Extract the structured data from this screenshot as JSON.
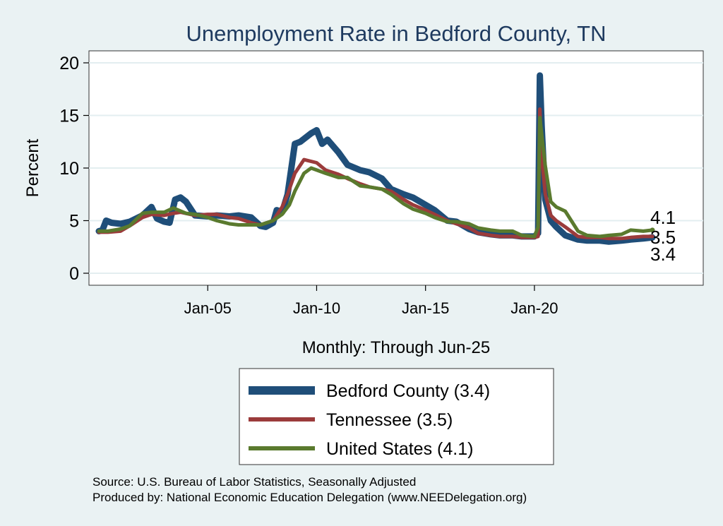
{
  "chart_data": {
    "type": "line",
    "title": "Unemployment Rate in Bedford  County, TN",
    "xlabel": "Monthly: Through Jun-25",
    "ylabel": "Percent",
    "y_ticks": [
      "0",
      "5",
      "10",
      "15",
      "20"
    ],
    "x_ticks": [
      {
        "label": "Jan-05",
        "year": 2005
      },
      {
        "label": "Jan-10",
        "year": 2010
      },
      {
        "label": "Jan-15",
        "year": 2015
      },
      {
        "label": "Jan-20",
        "year": 2020
      }
    ],
    "x_range": [
      "2000-01",
      "2025-06"
    ],
    "ylim": [
      0,
      20
    ],
    "grid": "horizontal",
    "legend": "bottom",
    "series": [
      {
        "name": "Bedford  County (3.4)",
        "color": "#1f4e79",
        "end_label": "3.4",
        "points": [
          [
            "2000-01",
            4.0
          ],
          [
            "2000-03",
            4.1
          ],
          [
            "2000-05",
            5.0
          ],
          [
            "2000-08",
            4.8
          ],
          [
            "2001-01",
            4.7
          ],
          [
            "2001-06",
            4.9
          ],
          [
            "2002-01",
            5.5
          ],
          [
            "2002-06",
            6.3
          ],
          [
            "2002-09",
            5.2
          ],
          [
            "2003-01",
            4.9
          ],
          [
            "2003-04",
            4.8
          ],
          [
            "2003-07",
            7.0
          ],
          [
            "2003-10",
            7.2
          ],
          [
            "2004-01",
            6.8
          ],
          [
            "2004-06",
            5.5
          ],
          [
            "2005-01",
            5.4
          ],
          [
            "2005-06",
            5.5
          ],
          [
            "2006-01",
            5.4
          ],
          [
            "2006-06",
            5.5
          ],
          [
            "2007-01",
            5.3
          ],
          [
            "2007-06",
            4.5
          ],
          [
            "2007-09",
            4.4
          ],
          [
            "2008-01",
            4.8
          ],
          [
            "2008-03",
            6.0
          ],
          [
            "2008-06",
            5.8
          ],
          [
            "2008-09",
            7.5
          ],
          [
            "2009-01",
            12.3
          ],
          [
            "2009-04",
            12.5
          ],
          [
            "2009-07",
            12.9
          ],
          [
            "2009-10",
            13.3
          ],
          [
            "2010-01",
            13.6
          ],
          [
            "2010-04",
            12.3
          ],
          [
            "2010-07",
            12.7
          ],
          [
            "2011-01",
            11.5
          ],
          [
            "2011-06",
            10.3
          ],
          [
            "2012-01",
            9.8
          ],
          [
            "2012-06",
            9.6
          ],
          [
            "2013-01",
            9.0
          ],
          [
            "2013-06",
            8.0
          ],
          [
            "2014-01",
            7.5
          ],
          [
            "2014-06",
            7.2
          ],
          [
            "2015-01",
            6.5
          ],
          [
            "2015-06",
            6.0
          ],
          [
            "2016-01",
            5.0
          ],
          [
            "2016-06",
            4.9
          ],
          [
            "2017-01",
            4.2
          ],
          [
            "2017-06",
            3.9
          ],
          [
            "2018-01",
            3.7
          ],
          [
            "2018-06",
            3.6
          ],
          [
            "2019-01",
            3.6
          ],
          [
            "2019-06",
            3.5
          ],
          [
            "2020-01",
            3.5
          ],
          [
            "2020-03",
            3.8
          ],
          [
            "2020-04",
            18.8
          ],
          [
            "2020-05",
            14.0
          ],
          [
            "2020-07",
            7.0
          ],
          [
            "2020-10",
            5.0
          ],
          [
            "2021-01",
            4.4
          ],
          [
            "2021-06",
            3.6
          ],
          [
            "2022-01",
            3.2
          ],
          [
            "2022-06",
            3.1
          ],
          [
            "2023-01",
            3.1
          ],
          [
            "2023-06",
            3.0
          ],
          [
            "2024-01",
            3.1
          ],
          [
            "2024-06",
            3.2
          ],
          [
            "2025-01",
            3.3
          ],
          [
            "2025-06",
            3.4
          ]
        ]
      },
      {
        "name": "Tennessee (3.5)",
        "color": "#9b3b3b",
        "end_label": "3.5",
        "points": [
          [
            "2000-01",
            3.9
          ],
          [
            "2000-06",
            3.9
          ],
          [
            "2001-01",
            4.0
          ],
          [
            "2001-06",
            4.5
          ],
          [
            "2002-01",
            5.3
          ],
          [
            "2002-06",
            5.6
          ],
          [
            "2003-01",
            5.5
          ],
          [
            "2003-06",
            5.7
          ],
          [
            "2003-10",
            5.8
          ],
          [
            "2004-06",
            5.5
          ],
          [
            "2005-01",
            5.6
          ],
          [
            "2005-06",
            5.6
          ],
          [
            "2006-01",
            5.3
          ],
          [
            "2006-06",
            5.2
          ],
          [
            "2007-01",
            4.8
          ],
          [
            "2007-06",
            4.6
          ],
          [
            "2008-01",
            5.0
          ],
          [
            "2008-06",
            6.3
          ],
          [
            "2008-09",
            7.5
          ],
          [
            "2009-01",
            9.5
          ],
          [
            "2009-06",
            10.8
          ],
          [
            "2010-01",
            10.5
          ],
          [
            "2010-06",
            9.8
          ],
          [
            "2011-01",
            9.4
          ],
          [
            "2011-06",
            9.0
          ],
          [
            "2012-01",
            8.5
          ],
          [
            "2012-06",
            8.2
          ],
          [
            "2013-01",
            8.0
          ],
          [
            "2013-06",
            7.8
          ],
          [
            "2014-01",
            7.0
          ],
          [
            "2014-06",
            6.5
          ],
          [
            "2015-01",
            6.0
          ],
          [
            "2015-06",
            5.6
          ],
          [
            "2016-01",
            5.0
          ],
          [
            "2016-06",
            4.7
          ],
          [
            "2017-01",
            4.3
          ],
          [
            "2017-06",
            3.8
          ],
          [
            "2018-01",
            3.6
          ],
          [
            "2018-06",
            3.5
          ],
          [
            "2019-01",
            3.5
          ],
          [
            "2019-06",
            3.4
          ],
          [
            "2020-01",
            3.4
          ],
          [
            "2020-03",
            3.5
          ],
          [
            "2020-04",
            15.6
          ],
          [
            "2020-05",
            11.0
          ],
          [
            "2020-07",
            7.5
          ],
          [
            "2020-10",
            5.5
          ],
          [
            "2021-01",
            5.0
          ],
          [
            "2021-06",
            4.4
          ],
          [
            "2022-01",
            3.5
          ],
          [
            "2022-06",
            3.4
          ],
          [
            "2023-01",
            3.4
          ],
          [
            "2023-06",
            3.3
          ],
          [
            "2024-01",
            3.3
          ],
          [
            "2024-06",
            3.4
          ],
          [
            "2025-01",
            3.5
          ],
          [
            "2025-06",
            3.5
          ]
        ]
      },
      {
        "name": "United States (4.1)",
        "color": "#5a7a2e",
        "end_label": "4.1",
        "points": [
          [
            "2000-01",
            4.0
          ],
          [
            "2000-06",
            4.0
          ],
          [
            "2001-01",
            4.2
          ],
          [
            "2001-06",
            4.5
          ],
          [
            "2002-01",
            5.7
          ],
          [
            "2002-06",
            5.8
          ],
          [
            "2003-01",
            5.8
          ],
          [
            "2003-06",
            6.2
          ],
          [
            "2004-01",
            5.7
          ],
          [
            "2004-06",
            5.6
          ],
          [
            "2005-01",
            5.3
          ],
          [
            "2005-06",
            5.0
          ],
          [
            "2006-01",
            4.7
          ],
          [
            "2006-06",
            4.6
          ],
          [
            "2007-01",
            4.6
          ],
          [
            "2007-06",
            4.6
          ],
          [
            "2008-01",
            5.0
          ],
          [
            "2008-06",
            5.6
          ],
          [
            "2008-10",
            6.5
          ],
          [
            "2009-01",
            7.8
          ],
          [
            "2009-06",
            9.5
          ],
          [
            "2009-10",
            10.0
          ],
          [
            "2010-06",
            9.5
          ],
          [
            "2011-01",
            9.1
          ],
          [
            "2011-06",
            9.1
          ],
          [
            "2012-01",
            8.3
          ],
          [
            "2012-06",
            8.2
          ],
          [
            "2013-01",
            8.0
          ],
          [
            "2013-06",
            7.5
          ],
          [
            "2014-01",
            6.6
          ],
          [
            "2014-06",
            6.1
          ],
          [
            "2015-01",
            5.7
          ],
          [
            "2015-06",
            5.3
          ],
          [
            "2016-01",
            4.9
          ],
          [
            "2016-06",
            4.9
          ],
          [
            "2017-01",
            4.7
          ],
          [
            "2017-06",
            4.3
          ],
          [
            "2018-01",
            4.1
          ],
          [
            "2018-06",
            4.0
          ],
          [
            "2019-01",
            4.0
          ],
          [
            "2019-06",
            3.6
          ],
          [
            "2020-01",
            3.5
          ],
          [
            "2020-03",
            4.4
          ],
          [
            "2020-04",
            14.8
          ],
          [
            "2020-05",
            13.2
          ],
          [
            "2020-07",
            10.2
          ],
          [
            "2020-10",
            6.8
          ],
          [
            "2021-01",
            6.3
          ],
          [
            "2021-06",
            5.9
          ],
          [
            "2022-01",
            4.0
          ],
          [
            "2022-06",
            3.6
          ],
          [
            "2023-01",
            3.5
          ],
          [
            "2023-06",
            3.6
          ],
          [
            "2024-01",
            3.7
          ],
          [
            "2024-06",
            4.1
          ],
          [
            "2025-01",
            4.0
          ],
          [
            "2025-06",
            4.1
          ]
        ]
      }
    ]
  },
  "footer": {
    "source": "Source: U.S. Bureau of Labor Statistics, Seasonally Adjusted",
    "produced": "Produced by: National Economic Education Delegation (www.NEEDelegation.org)"
  }
}
